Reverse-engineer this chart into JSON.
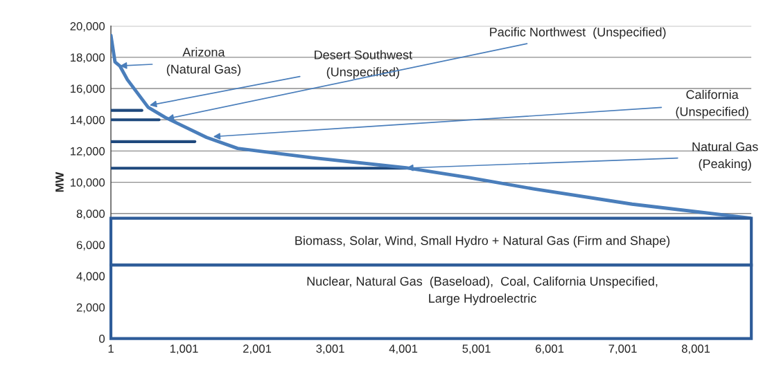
{
  "chart_data": {
    "type": "line",
    "ylabel": "MW",
    "xlim": [
      1,
      8760
    ],
    "ylim": [
      0,
      20000
    ],
    "xticks": [
      1,
      {
        "value": 1001,
        "label": "1,001"
      },
      {
        "value": 2001,
        "label": "2,001"
      },
      {
        "value": 3001,
        "label": "3,001"
      },
      {
        "value": 4001,
        "label": "4,001"
      },
      {
        "value": 5001,
        "label": "5,001"
      },
      {
        "value": 6001,
        "label": "6,001"
      },
      {
        "value": 7001,
        "label": "7,001"
      },
      {
        "value": 8001,
        "label": "8,001"
      }
    ],
    "yticks": [
      0,
      {
        "value": 2000,
        "label": "2,000"
      },
      {
        "value": 4000,
        "label": "4,000"
      },
      {
        "value": 6000,
        "label": "6,000"
      },
      {
        "value": 8000,
        "label": "8,000"
      },
      {
        "value": 10000,
        "label": "10,000"
      },
      {
        "value": 12000,
        "label": "12,000"
      },
      {
        "value": 14000,
        "label": "14,000"
      },
      {
        "value": 16000,
        "label": "16,000"
      },
      {
        "value": 18000,
        "label": "18,000"
      },
      {
        "value": 20000,
        "label": "20,000"
      }
    ],
    "grid": "y",
    "legend": false,
    "marker": "none",
    "line_style": "solid",
    "series": [
      {
        "color": "#4a7ebb",
        "x": [
          1,
          57,
          123,
          226,
          510,
          745,
          1310,
          1735,
          2755,
          4040,
          4900,
          5780,
          7130,
          8760
        ],
        "values": [
          19400,
          17700,
          17450,
          16570,
          14800,
          14150,
          12870,
          12170,
          11570,
          10930,
          10300,
          9580,
          8600,
          7700
        ]
      },
      {
        "color": "#1f497d",
        "x": [
          1,
          425
        ],
        "values": [
          14600,
          14600
        ]
      },
      {
        "color": "#1f497d",
        "x": [
          1,
          660
        ],
        "values": [
          14000,
          14000
        ]
      },
      {
        "color": "#1f497d",
        "x": [
          1,
          1150
        ],
        "values": [
          12600,
          12600
        ]
      },
      {
        "color": "#1f497d",
        "x": [
          1,
          4040
        ],
        "values": [
          10900,
          10900
        ]
      }
    ],
    "bands": [
      {
        "axis": "y",
        "from": 4700,
        "to": 7700,
        "label": "Biomass, Solar, Wind, Small Hydro + Natural Gas (Firm and Shape)",
        "color": "#2e5c99"
      },
      {
        "axis": "y",
        "from": 0,
        "to": 4700,
        "label": "Nuclear, Natural Gas  (Baseload),  Coal, California Unspecified,\nLarge Hydroelectric",
        "color": "#2e5c99"
      }
    ],
    "annotations": [
      {
        "text": "Arizona\n(Natural Gas)",
        "x": 123,
        "y": 17450
      },
      {
        "text": "Desert Southwest\n(Unspecified)",
        "x": 530,
        "y": 14930
      },
      {
        "text": "Pacific Northwest  (Unspecified)",
        "x": 765,
        "y": 14060
      },
      {
        "text": "California\n(Unspecified)",
        "x": 1400,
        "y": 12920
      },
      {
        "text": "Natural Gas\n(Peaking)",
        "x": 4040,
        "y": 10910
      }
    ]
  }
}
